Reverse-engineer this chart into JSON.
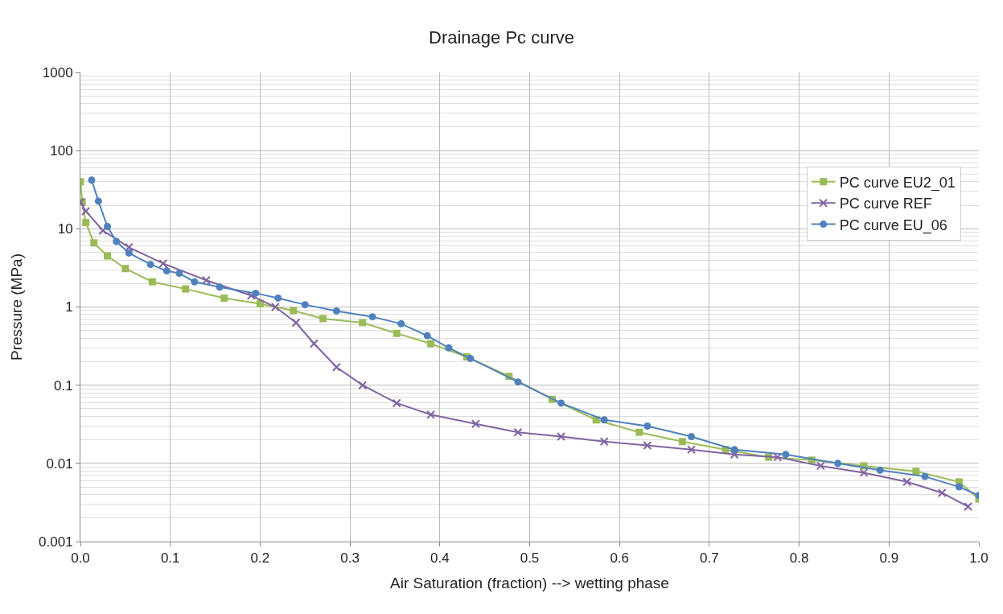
{
  "chart_data": {
    "type": "line",
    "title": "Drainage Pc curve",
    "xlabel": "Air Saturation (fraction) --> wetting phase",
    "ylabel": "Pressure (MPa)",
    "log": "y",
    "grid": true,
    "legend": "top right",
    "xlim": [
      0,
      1
    ],
    "xticks": [
      {
        "value": 0,
        "label": "0.0"
      },
      0.1,
      0.2,
      0.3,
      0.4,
      0.5,
      0.6,
      0.7,
      0.8,
      0.9,
      {
        "value": 1,
        "label": "1.0"
      }
    ],
    "ylim": [
      0.001,
      1000
    ],
    "yticks": [
      0.001,
      0.01,
      0.1,
      1,
      10,
      100,
      1000
    ],
    "series": [
      {
        "name": "PC curve EU2_01",
        "color": "#9bbb59",
        "marker": "square",
        "x": [
          0,
          0.002,
          0.006,
          0.015,
          0.03,
          0.05,
          0.08,
          0.117,
          0.16,
          0.2,
          0.237,
          0.27,
          0.314,
          0.352,
          0.39,
          0.43,
          0.477,
          0.525,
          0.574,
          0.622,
          0.67,
          0.718,
          0.766,
          0.814,
          0.872,
          0.93,
          0.978,
          1.0
        ],
        "values": [
          40,
          22,
          12,
          6.6,
          4.5,
          3.1,
          2.1,
          1.7,
          1.3,
          1.1,
          0.9,
          0.71,
          0.63,
          0.46,
          0.34,
          0.23,
          0.13,
          0.066,
          0.036,
          0.025,
          0.019,
          0.015,
          0.012,
          0.011,
          0.0093,
          0.0079,
          0.0058,
          0.0035
        ]
      },
      {
        "name": "PC curve REF",
        "color": "#8064a2",
        "marker": "cross",
        "x": [
          0,
          0.006,
          0.025,
          0.054,
          0.092,
          0.14,
          0.19,
          0.217,
          0.24,
          0.26,
          0.285,
          0.314,
          0.352,
          0.39,
          0.44,
          0.487,
          0.535,
          0.583,
          0.631,
          0.68,
          0.728,
          0.776,
          0.824,
          0.872,
          0.92,
          0.959,
          0.988
        ],
        "values": [
          22,
          16.8,
          9.5,
          5.8,
          3.6,
          2.2,
          1.4,
          1.0,
          0.63,
          0.34,
          0.17,
          0.1,
          0.059,
          0.042,
          0.032,
          0.025,
          0.022,
          0.019,
          0.017,
          0.015,
          0.013,
          0.012,
          0.0093,
          0.0076,
          0.0058,
          0.0042,
          0.0028
        ]
      },
      {
        "name": "PC curve EU_06",
        "color": "#4f81bd",
        "marker": "circle",
        "x": [
          0.0125,
          0.02,
          0.03,
          0.04,
          0.054,
          0.078,
          0.096,
          0.11,
          0.127,
          0.155,
          0.195,
          0.22,
          0.25,
          0.285,
          0.325,
          0.357,
          0.386,
          0.41,
          0.434,
          0.487,
          0.535,
          0.583,
          0.631,
          0.68,
          0.728,
          0.785,
          0.843,
          0.89,
          0.94,
          0.978,
          1.0
        ],
        "values": [
          42,
          22.6,
          10.7,
          6.9,
          4.9,
          3.5,
          2.9,
          2.7,
          2.1,
          1.8,
          1.5,
          1.3,
          1.07,
          0.89,
          0.75,
          0.61,
          0.43,
          0.3,
          0.22,
          0.11,
          0.059,
          0.036,
          0.03,
          0.022,
          0.015,
          0.013,
          0.01,
          0.0082,
          0.0068,
          0.005,
          0.0039
        ]
      }
    ]
  }
}
